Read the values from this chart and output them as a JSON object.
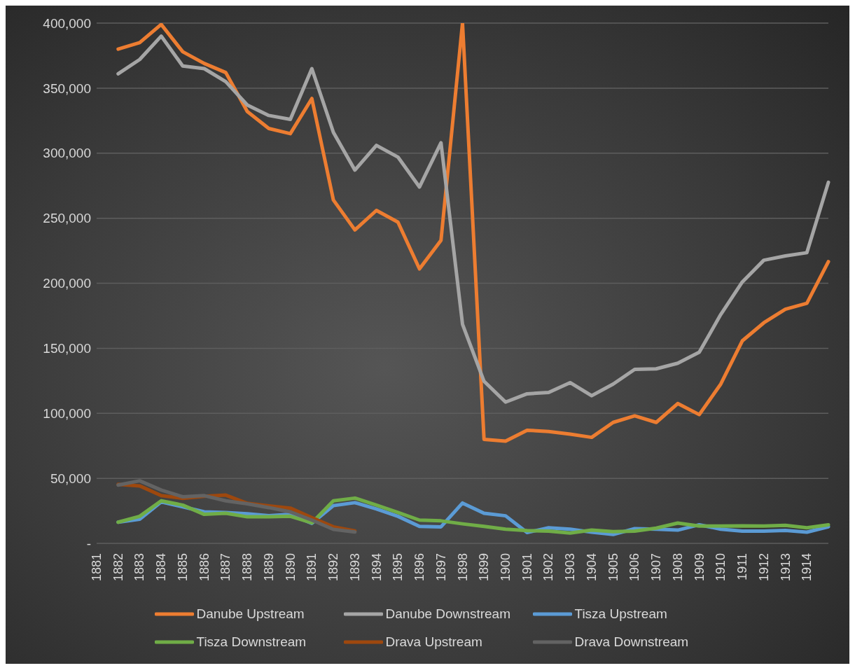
{
  "chart_data": {
    "type": "line",
    "categories": [
      "1881",
      "1882",
      "1883",
      "1884",
      "1885",
      "1886",
      "1887",
      "1888",
      "1889",
      "1890",
      "1891",
      "1892",
      "1893",
      "1894",
      "1895",
      "1896",
      "1897",
      "1898",
      "1899",
      "1900",
      "1901",
      "1902",
      "1903",
      "1904",
      "1905",
      "1906",
      "1907",
      "1908",
      "1909",
      "1910",
      "1911",
      "1912",
      "1913",
      "1914",
      null
    ],
    "series": [
      {
        "name": "Danube Upstream",
        "color": "#ed7d31",
        "values": [
          null,
          380000,
          385000,
          399000,
          378000,
          369000,
          362000,
          332000,
          319000,
          315000,
          342000,
          264000,
          241000,
          256000,
          247000,
          211000,
          233000,
          400000,
          80000,
          78600,
          87000,
          86000,
          84000,
          81500,
          93000,
          98000,
          93000,
          107500,
          99000,
          122500,
          155700,
          169600,
          180000,
          184600,
          216600
        ]
      },
      {
        "name": "Danube Downstream",
        "color": "#a5a5a5",
        "values": [
          null,
          361000,
          372000,
          390000,
          367000,
          365000,
          355000,
          337000,
          329000,
          326000,
          365000,
          316000,
          287000,
          306000,
          297000,
          274000,
          308000,
          168500,
          124600,
          108600,
          115000,
          116000,
          123600,
          113500,
          122500,
          133800,
          134200,
          138500,
          147000,
          176000,
          201000,
          217700,
          221000,
          223500,
          277600
        ]
      },
      {
        "name": "Tisza Upstream",
        "color": "#5b9bd5",
        "values": [
          null,
          16300,
          18500,
          31900,
          28100,
          24200,
          23700,
          22700,
          21300,
          22300,
          15400,
          29000,
          31300,
          26500,
          20800,
          13100,
          12700,
          31000,
          23100,
          21200,
          8300,
          12000,
          10900,
          8600,
          6800,
          11300,
          10900,
          10200,
          14300,
          10900,
          9400,
          9400,
          10000,
          8600,
          12800
        ]
      },
      {
        "name": "Tisza Downstream",
        "color": "#70ad47",
        "values": [
          null,
          16300,
          20800,
          32700,
          29400,
          22300,
          23100,
          20400,
          20400,
          20800,
          15800,
          32700,
          34800,
          29400,
          23700,
          17900,
          17300,
          15000,
          13000,
          10900,
          9800,
          9400,
          7900,
          10200,
          9000,
          9400,
          11700,
          15600,
          13300,
          13300,
          13500,
          13300,
          13900,
          12000,
          14300
        ]
      },
      {
        "name": "Drava Upstream",
        "color": "#9e480e",
        "values": [
          null,
          45400,
          44200,
          36700,
          34600,
          36200,
          37100,
          30800,
          28800,
          27100,
          19800,
          12700,
          9600,
          null,
          null,
          null,
          null,
          null,
          null,
          null,
          null,
          null,
          null,
          null,
          null,
          null,
          null,
          null,
          null,
          null,
          null,
          null,
          null,
          null,
          null
        ]
      },
      {
        "name": "Drava Downstream",
        "color": "#636363",
        "values": [
          null,
          44800,
          48100,
          41000,
          35800,
          36700,
          32700,
          30400,
          27500,
          24200,
          17900,
          10800,
          8800,
          null,
          null,
          null,
          null,
          null,
          null,
          null,
          null,
          null,
          null,
          null,
          null,
          null,
          null,
          null,
          null,
          null,
          null,
          null,
          null,
          null,
          null
        ]
      }
    ],
    "ylim": [
      0,
      400000
    ],
    "yticks": [
      {
        "value": 0,
        "label": "-"
      },
      {
        "value": 50000,
        "label": "50,000"
      },
      {
        "value": 100000,
        "label": "100,000"
      },
      {
        "value": 150000,
        "label": "150,000"
      },
      {
        "value": 200000,
        "label": "200,000"
      },
      {
        "value": 250000,
        "label": "250,000"
      },
      {
        "value": 300000,
        "label": "300,000"
      },
      {
        "value": 350000,
        "label": "350,000"
      },
      {
        "value": 400000,
        "label": "400,000"
      }
    ],
    "grid": "y",
    "legend": "bottom",
    "marker": "none",
    "line_style": "solid"
  }
}
